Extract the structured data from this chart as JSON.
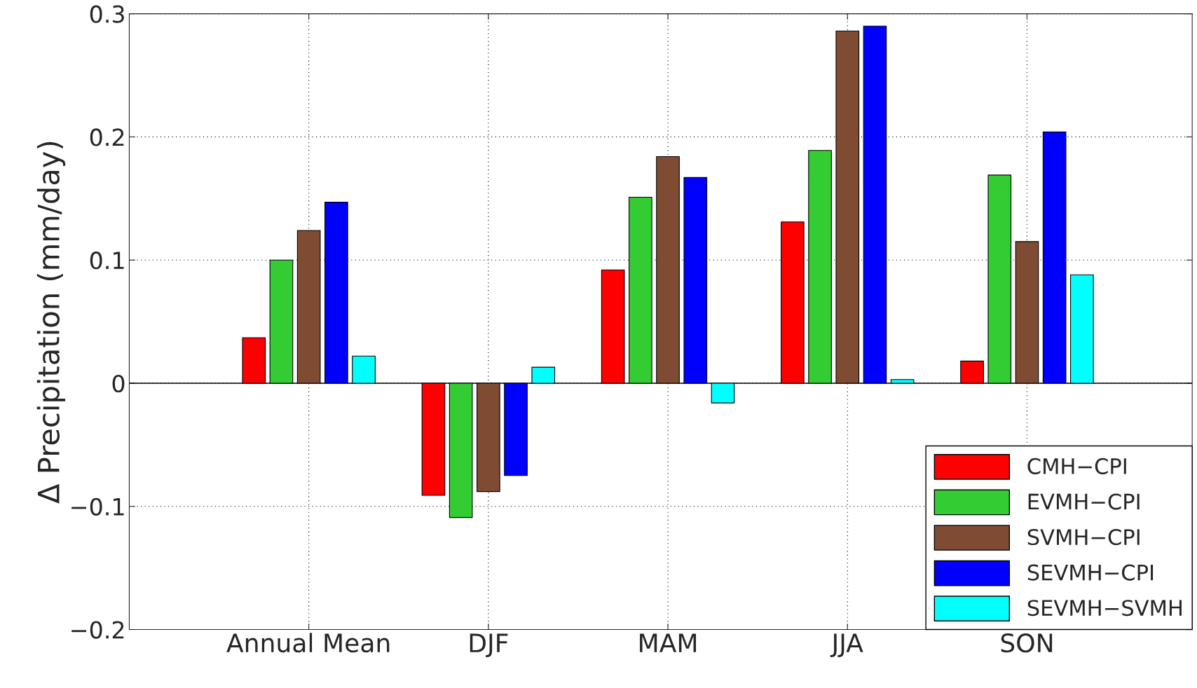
{
  "chart_data": {
    "type": "bar",
    "ylabel": "Δ Precipitation (mm/day)",
    "categories": [
      "Annual Mean",
      "DJF",
      "MAM",
      "JJA",
      "SON"
    ],
    "series": [
      {
        "name": "CMH−CPI",
        "color": "#ff0000",
        "values": [
          0.037,
          -0.091,
          0.092,
          0.131,
          0.018
        ]
      },
      {
        "name": "EVMH−CPI",
        "color": "#33cc33",
        "values": [
          0.1,
          -0.109,
          0.151,
          0.189,
          0.169
        ]
      },
      {
        "name": "SVMH−CPI",
        "color": "#7f4c33",
        "values": [
          0.124,
          -0.088,
          0.184,
          0.286,
          0.115
        ]
      },
      {
        "name": "SEVMH−CPI",
        "color": "#0000ff",
        "values": [
          0.147,
          -0.075,
          0.167,
          0.29,
          0.204
        ]
      },
      {
        "name": "SEVMH−SVMH",
        "color": "#00ffff",
        "values": [
          0.022,
          0.013,
          -0.016,
          0.003,
          0.088
        ]
      }
    ],
    "ylim": [
      -0.2,
      0.3
    ],
    "yticks": [
      {
        "value": -0.2,
        "label": "−0.2"
      },
      {
        "value": -0.1,
        "label": "−0.1"
      },
      0,
      0.1,
      0.2,
      0.3
    ],
    "ref_lines": [
      {
        "axis": "y",
        "value": 0,
        "color": "#000000"
      }
    ],
    "grid": true,
    "legend": "bottom right"
  }
}
